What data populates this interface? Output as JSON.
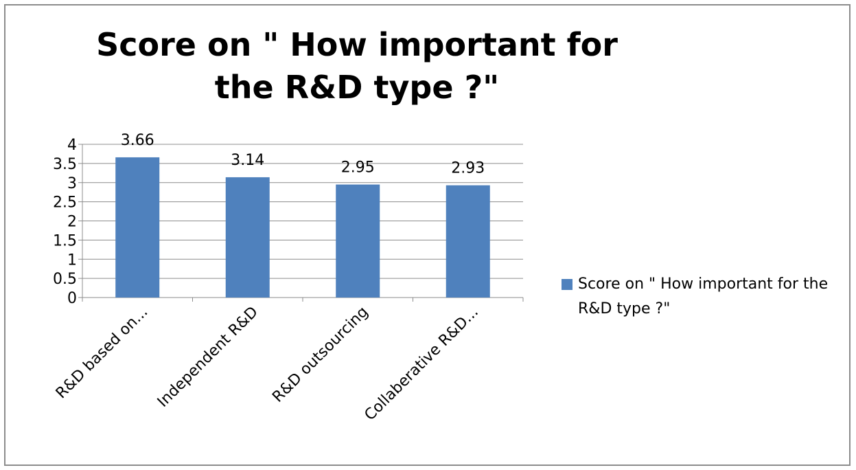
{
  "chart_data": {
    "type": "bar",
    "title": "Score on \" How important for the R&D type ?\"",
    "categories": [
      "R&D based on...",
      "Independent R&D",
      "R&D outsourcing",
      "Collaberative R&D..."
    ],
    "series": [
      {
        "name": "Score on \" How important for the R&D type ?\"",
        "values": [
          3.66,
          3.14,
          2.95,
          2.93
        ],
        "data_labels": [
          "3.66",
          "3.14",
          "2.95",
          "2.93"
        ]
      }
    ],
    "yticks": [
      "0",
      "0.5",
      "1",
      "1.5",
      "2",
      "2.5",
      "3",
      "3.5",
      "4"
    ],
    "ylim": [
      0,
      4
    ],
    "grid": true,
    "legend": "right",
    "bar_color": "#4f81bd",
    "grid_color": "#8c8c8c"
  }
}
